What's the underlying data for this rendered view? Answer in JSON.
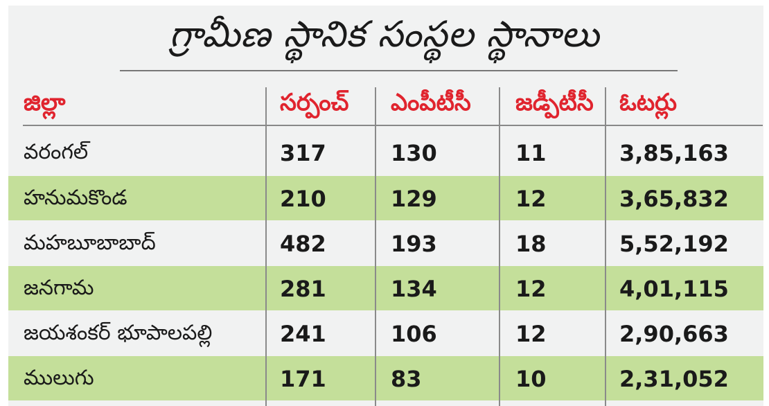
{
  "title": "గ్రామీణ స్థానిక సంస్థల స్థానాలు",
  "columns": [
    "జిల్లా",
    "సర్పంచ్",
    "ఎంపీటీసీ",
    "జడ్పీటీసీ",
    "ఓటర్లు"
  ],
  "rows": [
    {
      "district": "వరంగల్",
      "sarpanch": "317",
      "mptc": "130",
      "zptc": "11",
      "voters": "3,85,163"
    },
    {
      "district": "హనుమకొండ",
      "sarpanch": "210",
      "mptc": "129",
      "zptc": "12",
      "voters": "3,65,832"
    },
    {
      "district": "మహబూబాబాద్",
      "sarpanch": "482",
      "mptc": "193",
      "zptc": "18",
      "voters": "5,52,192"
    },
    {
      "district": "జనగామ",
      "sarpanch": "281",
      "mptc": "134",
      "zptc": "12",
      "voters": "4,01,115"
    },
    {
      "district": "జయశంకర్ భూపాలపల్లి",
      "sarpanch": "241",
      "mptc": "106",
      "zptc": "12",
      "voters": "2,90,663"
    },
    {
      "district": "ములుగు",
      "sarpanch": "171",
      "mptc": "83",
      "zptc": "10",
      "voters": "2,31,052"
    }
  ],
  "colors": {
    "header_text": "#e0242e",
    "stripe": "#c4df9a",
    "background": "#f1f2f2"
  }
}
